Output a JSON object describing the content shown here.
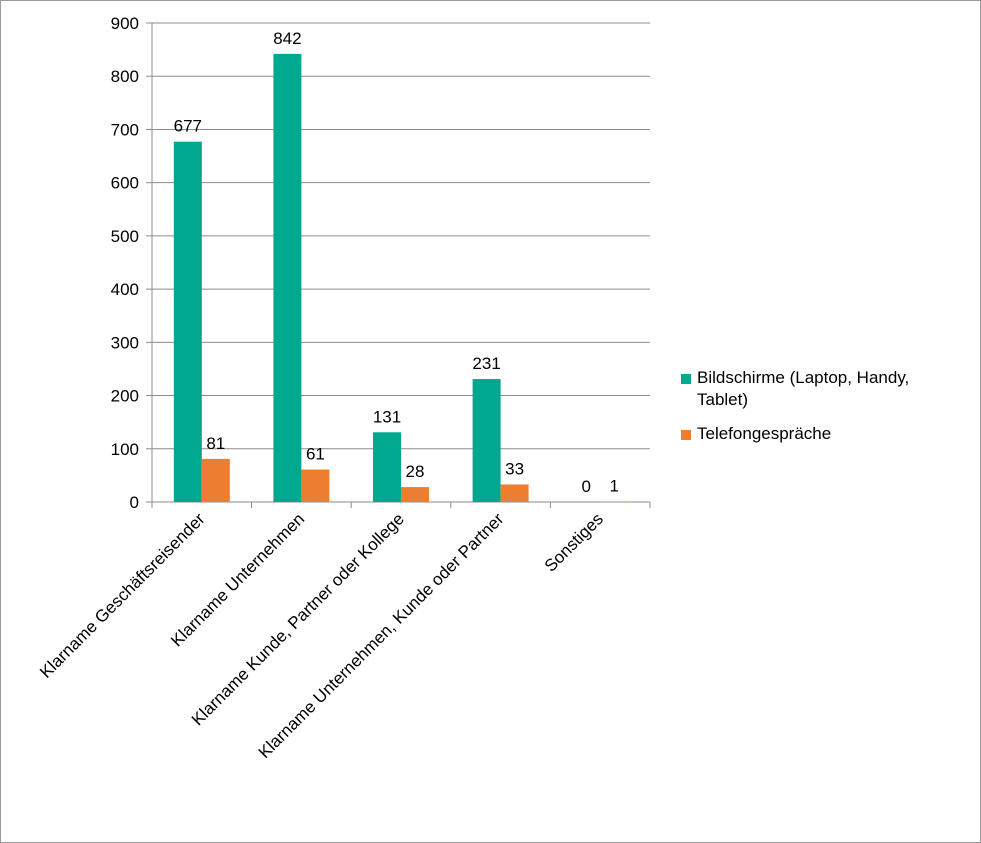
{
  "chart_data": {
    "type": "bar",
    "categories": [
      "Klarname Geschäftsreisender",
      "Klarname Unternehmen",
      "Klarname Kunde, Partner oder Kollege",
      "Klarname Unternehmen, Kunde oder Partner",
      "Sonstiges"
    ],
    "series": [
      {
        "name": "Bildschirme (Laptop, Handy, Tablet)",
        "values": [
          677,
          842,
          131,
          231,
          0
        ],
        "color": "#00A88F"
      },
      {
        "name": "Telefongespräche",
        "values": [
          81,
          61,
          28,
          33,
          1
        ],
        "color": "#ED7D31"
      }
    ],
    "ylim": [
      0,
      900
    ],
    "yticks": [
      0,
      100,
      200,
      300,
      400,
      500,
      600,
      700,
      800,
      900
    ],
    "grid": true,
    "legend": "right",
    "data_labels": true
  }
}
